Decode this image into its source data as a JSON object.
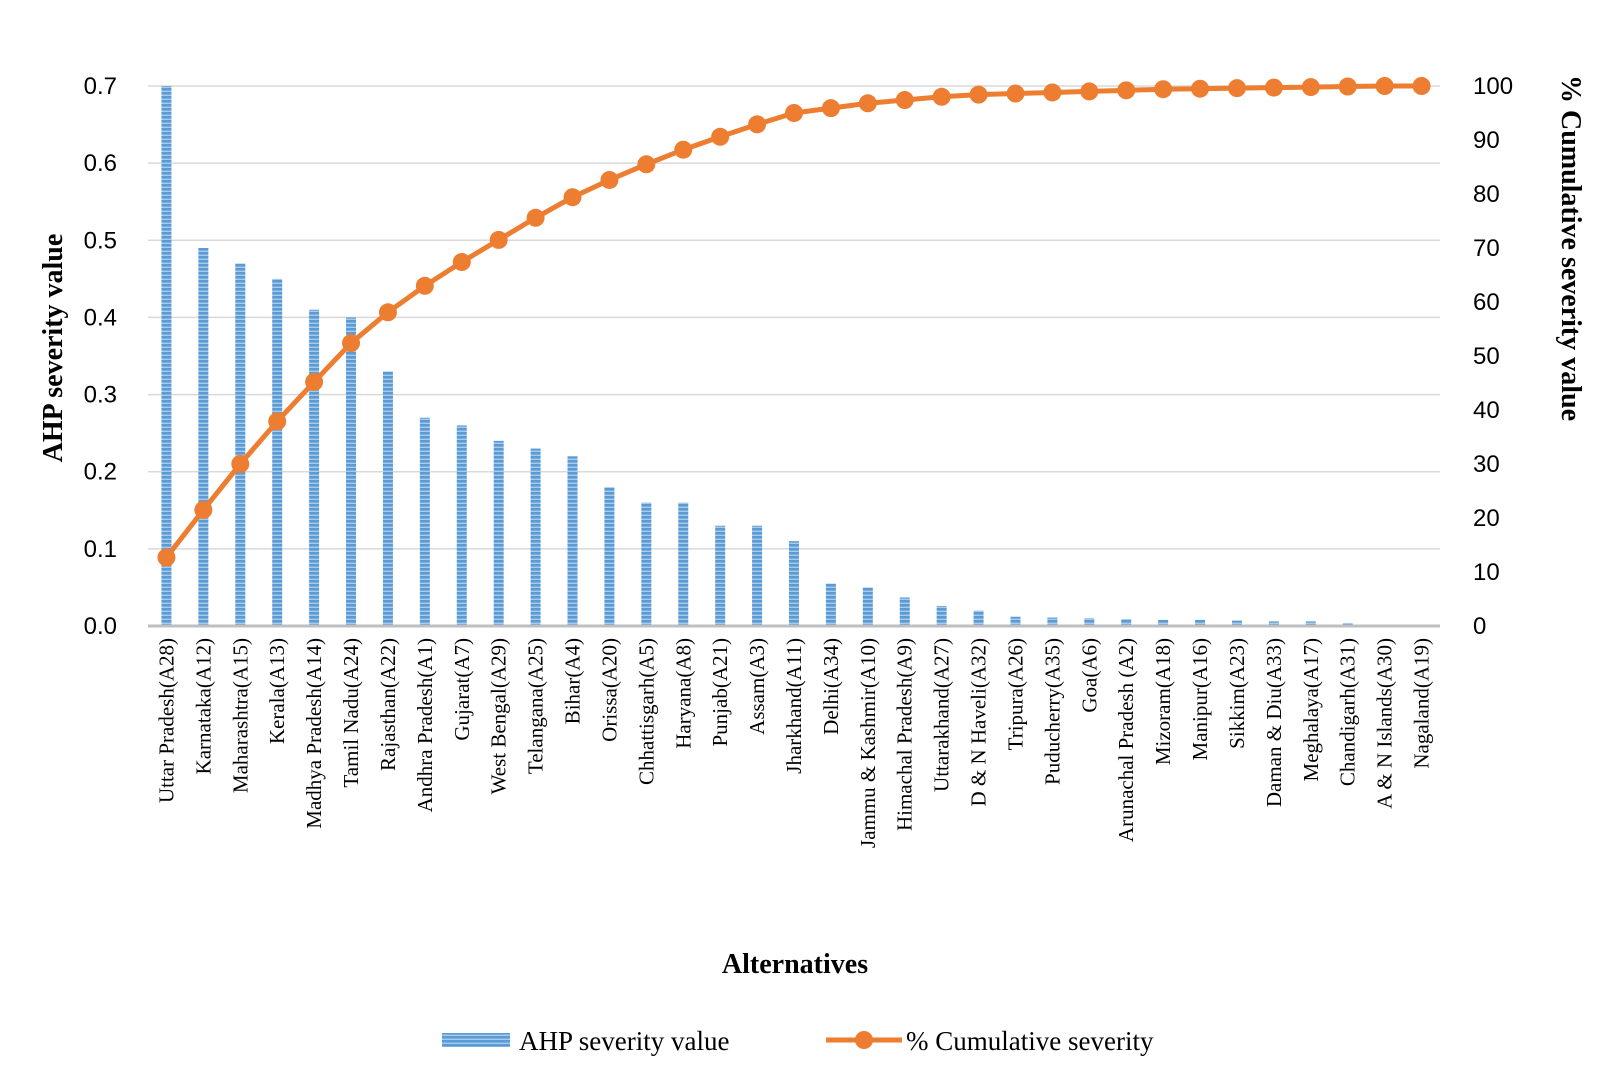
{
  "chart_data": {
    "type": "bar+line",
    "title": "",
    "xlabel": "Alternatives",
    "ylabel_left": "AHP severity value",
    "ylabel_right": "% Cumulative severity value",
    "ylim_left": [
      0,
      0.7
    ],
    "ylim_right": [
      0,
      100
    ],
    "yticks_left": [
      "0.0",
      "0.1",
      "0.2",
      "0.3",
      "0.4",
      "0.5",
      "0.6",
      "0.7"
    ],
    "yticks_right": [
      "0",
      "10",
      "20",
      "30",
      "40",
      "50",
      "60",
      "70",
      "80",
      "90",
      "100"
    ],
    "grid": true,
    "legend_position": "bottom",
    "categories": [
      "Uttar Pradesh(A28)",
      "Karnataka(A12)",
      "Maharashtra(A15)",
      "Kerala(A13)",
      "Madhya Pradesh(A14)",
      "Tamil Nadu(A24)",
      "Rajasthan(A22)",
      "Andhra Pradesh(A1)",
      "Gujarat(A7)",
      "West Bengal(A29)",
      "Telangana(A25)",
      "Bihar(A4)",
      "Orissa(A20)",
      "Chhattisgarh(A5)",
      "Haryana(A8)",
      "Punjab(A21)",
      "Assam(A3)",
      "Jharkhand(A11)",
      "Delhi(A34)",
      "Jammu & Kashmir(A10)",
      "Himachal Pradesh(A9)",
      "Uttarakhand(A27)",
      "D & N Haveli(A32)",
      "Tripura(A26)",
      "Puducherry(A35)",
      "Goa(A6)",
      "Arunachal Pradesh (A2)",
      "Mizoram(A18)",
      "Manipur(A16)",
      "Sikkim(A23)",
      "Daman & Diu(A33)",
      "Meghalaya(A17)",
      "Chandigarh(A31)",
      "A & N Islands(A30)",
      "Nagaland(A19)"
    ],
    "series": [
      {
        "name": "AHP severity value",
        "type": "bar",
        "axis": "left",
        "color": "#5b9bd5",
        "values": [
          0.7,
          0.49,
          0.47,
          0.45,
          0.41,
          0.4,
          0.33,
          0.27,
          0.26,
          0.24,
          0.23,
          0.22,
          0.18,
          0.16,
          0.16,
          0.13,
          0.13,
          0.11,
          0.055,
          0.05,
          0.037,
          0.026,
          0.02,
          0.012,
          0.011,
          0.01,
          0.009,
          0.008,
          0.008,
          0.007,
          0.006,
          0.006,
          0.004,
          0.001,
          0.001
        ]
      },
      {
        "name": "% Cumulative severity",
        "type": "line",
        "axis": "right",
        "color": "#ed7d31",
        "values": [
          12.7,
          21.5,
          30.0,
          37.9,
          45.2,
          52.4,
          58.1,
          63.0,
          67.4,
          71.5,
          75.6,
          79.4,
          82.6,
          85.5,
          88.2,
          90.6,
          92.9,
          95.0,
          95.9,
          96.8,
          97.4,
          98.0,
          98.4,
          98.6,
          98.8,
          99.0,
          99.2,
          99.4,
          99.5,
          99.6,
          99.7,
          99.8,
          99.9,
          100.0,
          100.0
        ]
      }
    ]
  }
}
